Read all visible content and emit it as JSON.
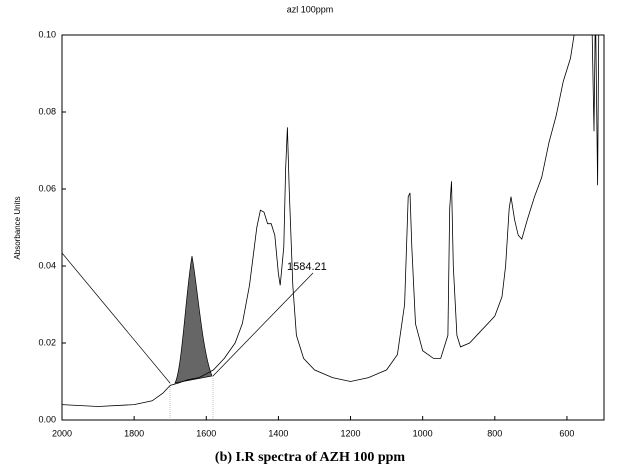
{
  "chart_data": {
    "type": "line",
    "title": "azl 100ppm",
    "y_label": "Absorbance Units",
    "annotation": "1584.21",
    "caption": "(b)  I.R  spectra of AZH 100 ppm",
    "xlim": [
      2000,
      500
    ],
    "ylim": [
      0,
      0.1
    ],
    "xticks": [
      2000,
      1800,
      1600,
      1400,
      1200,
      1000,
      800,
      600
    ],
    "yticks": [
      {
        "value": 0,
        "label": "0.00"
      },
      {
        "value": 0.02,
        "label": "0.02"
      },
      {
        "value": 0.04,
        "label": "0.04"
      },
      {
        "value": 0.06,
        "label": "0.06"
      },
      {
        "value": 0.08,
        "label": "0.08"
      },
      {
        "value": 0.1,
        "label": "0.10"
      }
    ],
    "color": "#000000",
    "x": [
      2000,
      1900,
      1800,
      1750,
      1720,
      1700,
      1680,
      1650,
      1620,
      1600,
      1580,
      1550,
      1520,
      1500,
      1480,
      1460,
      1450,
      1440,
      1430,
      1420,
      1410,
      1400,
      1395,
      1385,
      1380,
      1375,
      1370,
      1360,
      1350,
      1330,
      1300,
      1250,
      1200,
      1150,
      1100,
      1070,
      1050,
      1040,
      1035,
      1030,
      1020,
      1000,
      970,
      950,
      930,
      925,
      920,
      915,
      905,
      895,
      870,
      850,
      800,
      780,
      770,
      760,
      755,
      745,
      735,
      725,
      710,
      690,
      670,
      650,
      630,
      610,
      590,
      580,
      570,
      560,
      530,
      525,
      522,
      520,
      515,
      512,
      510
    ],
    "values": [
      0.004,
      0.0035,
      0.004,
      0.005,
      0.007,
      0.009,
      0.0095,
      0.0105,
      0.011,
      0.012,
      0.013,
      0.016,
      0.02,
      0.025,
      0.035,
      0.05,
      0.0545,
      0.054,
      0.051,
      0.051,
      0.048,
      0.038,
      0.035,
      0.045,
      0.065,
      0.076,
      0.06,
      0.035,
      0.022,
      0.016,
      0.013,
      0.011,
      0.01,
      0.011,
      0.013,
      0.017,
      0.03,
      0.058,
      0.059,
      0.045,
      0.025,
      0.018,
      0.016,
      0.016,
      0.022,
      0.055,
      0.062,
      0.04,
      0.022,
      0.019,
      0.02,
      0.022,
      0.027,
      0.032,
      0.04,
      0.055,
      0.058,
      0.052,
      0.048,
      0.047,
      0.052,
      0.058,
      0.063,
      0.072,
      0.079,
      0.088,
      0.094,
      0.1,
      0.1,
      0.1,
      0.1,
      0.075,
      0.1,
      0.1,
      0.061,
      0.1,
      0.1
    ]
  }
}
